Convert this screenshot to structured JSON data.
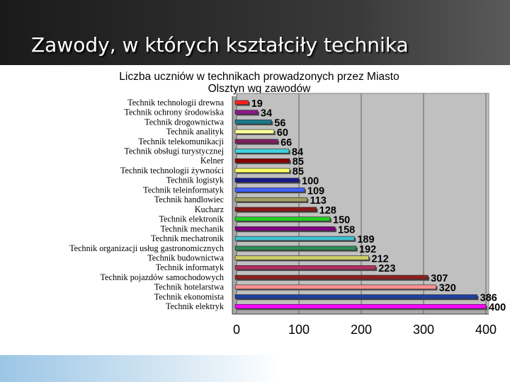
{
  "slide": {
    "title": "Zawody, w których kształciły technika"
  },
  "chart_data": {
    "type": "bar",
    "orientation": "horizontal",
    "title": "Liczba uczniów w technikach  prowadzonych przez Miasto Olsztyn wg zawodów",
    "title_lines": [
      "Liczba uczniów w technikach  prowadzonych przez Miasto",
      "Olsztyn wg zawodów"
    ],
    "xlim": [
      0,
      400
    ],
    "xticks": [
      0,
      100,
      200,
      300,
      400
    ],
    "grid": true,
    "legend": "none",
    "categories": [
      "Technik technologii drewna",
      "Technik ochrony środowiska",
      "Technik drogownictwa",
      "Technik analityk",
      "Technik telekomunikacji",
      "Technik obsługi turystycznej",
      "Kelner",
      "Technik technologii żywności",
      "Technik logistyk",
      "Technik teleinformatyk",
      "Technik handlowiec",
      "Kucharz",
      "Technik elektronik",
      "Technik mechanik",
      "Technik mechatronik",
      "Technik organizacji usług gastronomicznych",
      "Technik budownictwa",
      "Technik informatyk",
      "Technik pojazdów samochodowych",
      "Technik hotelarstwa",
      "Technik ekonomista",
      "Technik elektryk"
    ],
    "values": [
      19,
      34,
      56,
      60,
      66,
      84,
      85,
      85,
      100,
      109,
      113,
      128,
      150,
      158,
      189,
      192,
      212,
      223,
      307,
      320,
      386,
      400
    ],
    "colors": [
      "#ff2020",
      "#8a1a8a",
      "#1a7a8a",
      "#ffff99",
      "#802060",
      "#40d0e0",
      "#8b0000",
      "#ffff66",
      "#1a1a8c",
      "#4060ff",
      "#a0a060",
      "#8b1a1a",
      "#22cc22",
      "#800080",
      "#40c0d0",
      "#2e8b57",
      "#cccc66",
      "#b03060",
      "#8b2222",
      "#ff9090",
      "#2040a0",
      "#ff00ff"
    ],
    "plot_background": "#c0c0c0"
  }
}
